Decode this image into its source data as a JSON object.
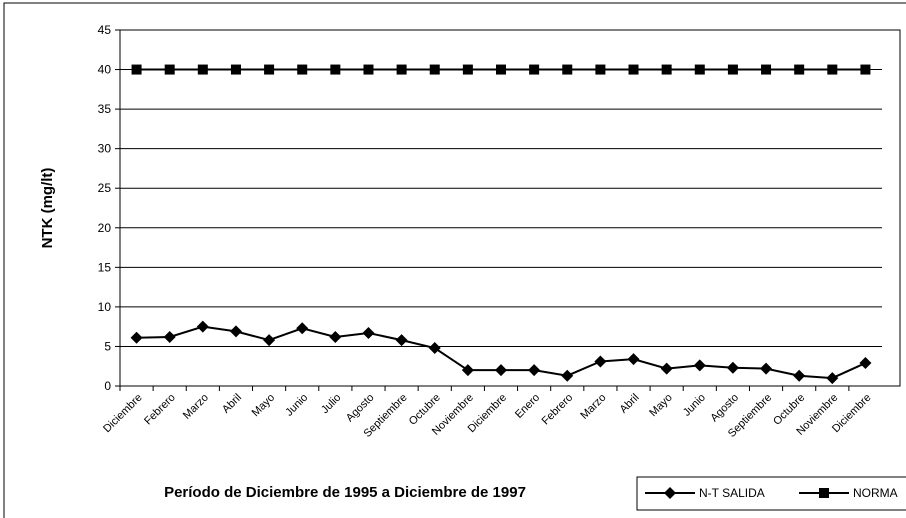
{
  "chart_data": {
    "type": "line",
    "x_label": "Período de Diciembre de 1995 a Diciembre de 1997",
    "y_label": "NTK (mg/lt)",
    "categories": [
      "Diciembre",
      "Febrero",
      "Marzo",
      "Abril",
      "Mayo",
      "Junio",
      "Julio",
      "Agosto",
      "Septiembre",
      "Octubre",
      "Noviembre",
      "Diciembre",
      "Enero",
      "Febrero",
      "Marzo",
      "Abril",
      "Mayo",
      "Junio",
      "Agosto",
      "Septiembre",
      "Octubre",
      "Noviembre",
      "Diciembre"
    ],
    "series": [
      {
        "name": "N-T SALIDA",
        "color": "#000000",
        "marker": "diamond",
        "values": [
          6.1,
          6.2,
          7.5,
          6.9,
          5.8,
          7.3,
          6.2,
          6.7,
          5.8,
          4.8,
          2.0,
          2.0,
          2.0,
          1.3,
          3.1,
          3.4,
          2.2,
          2.6,
          2.3,
          2.2,
          1.3,
          1.0,
          2.9
        ]
      },
      {
        "name": "NORMA",
        "color": "#000000",
        "marker": "square",
        "values": [
          40,
          40,
          40,
          40,
          40,
          40,
          40,
          40,
          40,
          40,
          40,
          40,
          40,
          40,
          40,
          40,
          40,
          40,
          40,
          40,
          40,
          40,
          40
        ]
      }
    ],
    "ylim": [
      0,
      45
    ],
    "yticks": [
      0,
      5,
      10,
      15,
      20,
      25,
      30,
      35,
      40,
      45
    ],
    "grid": true,
    "legend": "bottom-right"
  }
}
